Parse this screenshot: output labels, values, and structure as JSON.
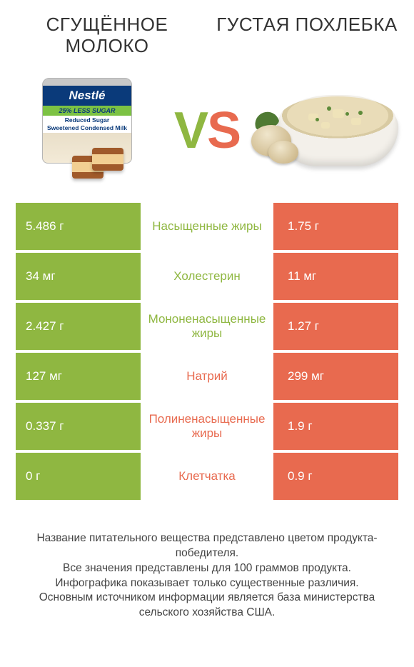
{
  "colors": {
    "green": "#8fb741",
    "orange": "#e86a4f",
    "text": "#333333",
    "bg": "#ffffff"
  },
  "left_product": {
    "title": "СГУЩЁННОЕ МОЛОКО",
    "brand_text": "Nestlé",
    "sub1": "Reduced Sugar",
    "sub2": "Sweetened Condensed Milk",
    "badge": "25% LESS SUGAR"
  },
  "right_product": {
    "title": "ГУСТАЯ ПОХЛЕБКА"
  },
  "vs": {
    "v": "V",
    "s": "S"
  },
  "rows": [
    {
      "label": "Насыщенные жиры",
      "left": "5.486 г",
      "right": "1.75 г",
      "winner": "left"
    },
    {
      "label": "Холестерин",
      "left": "34 мг",
      "right": "11 мг",
      "winner": "left"
    },
    {
      "label": "Мононенасыщенные жиры",
      "left": "2.427 г",
      "right": "1.27 г",
      "winner": "left"
    },
    {
      "label": "Натрий",
      "left": "127 мг",
      "right": "299 мг",
      "winner": "right"
    },
    {
      "label": "Полиненасыщенные жиры",
      "left": "0.337 г",
      "right": "1.9 г",
      "winner": "right"
    },
    {
      "label": "Клетчатка",
      "left": "0 г",
      "right": "0.9 г",
      "winner": "right"
    }
  ],
  "disclaimer": [
    "Название питательного вещества представлено цветом продукта-победителя.",
    "Все значения представлены для 100 граммов продукта.",
    "Инфографика показывает только существенные различия.",
    "Основным источником информации является база министерства сельского хозяйства США."
  ]
}
